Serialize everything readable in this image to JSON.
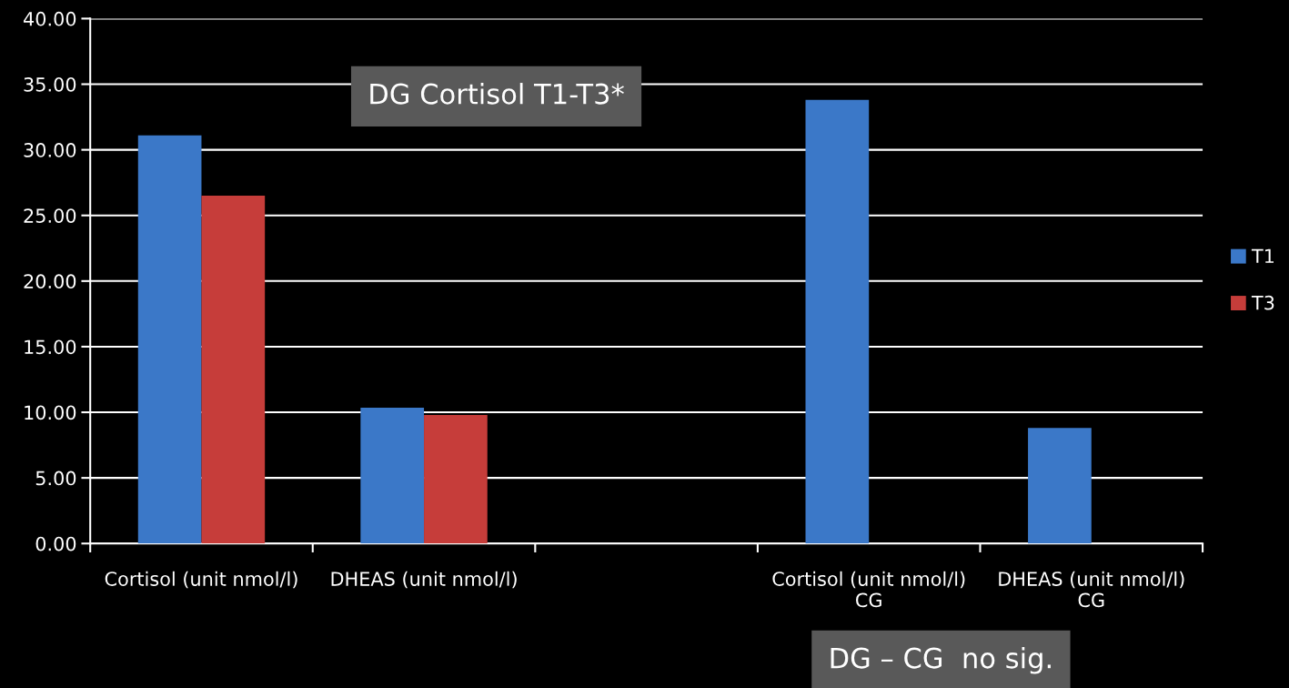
{
  "chart_data": {
    "type": "bar",
    "categories": [
      "Cortisol (unit nmol/l)",
      "DHEAS (unit nmol/l)",
      null,
      "Cortisol (unit nmol/l)\nCG",
      "DHEAS (unit nmol/l)\nCG"
    ],
    "series": [
      {
        "name": "T1",
        "color": "#3b78c8",
        "values": [
          31.1,
          10.35,
          null,
          33.8,
          8.8
        ]
      },
      {
        "name": "T3",
        "color": "#c63d3a",
        "values": [
          26.5,
          9.8,
          null,
          null,
          null
        ]
      }
    ],
    "ylim": [
      0,
      40
    ],
    "yticks": [
      {
        "value": 0,
        "label": "0.00"
      },
      {
        "value": 5,
        "label": "5.00"
      },
      {
        "value": 10,
        "label": "10.00"
      },
      {
        "value": 15,
        "label": "15.00"
      },
      {
        "value": 20,
        "label": "20.00"
      },
      {
        "value": 25,
        "label": "25.00"
      },
      {
        "value": 30,
        "label": "30.00"
      },
      {
        "value": 35,
        "label": "35.00"
      },
      {
        "value": 40,
        "label": "40.00"
      }
    ],
    "grid": "y",
    "legend": "right",
    "annotations": [
      "DG Cortisol T1-T3*",
      "DG – CG  no sig."
    ]
  }
}
